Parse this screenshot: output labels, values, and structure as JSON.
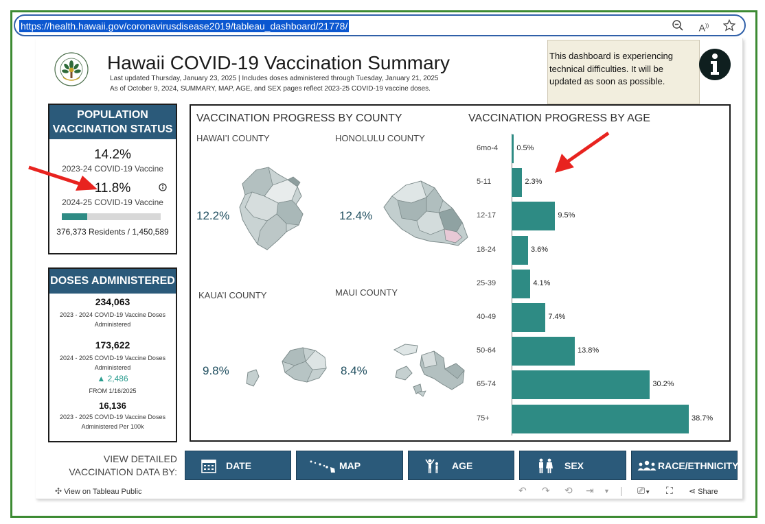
{
  "browser": {
    "url": "https://health.hawaii.gov/coronavirusdisease2019/tableau_dashboard/21778/",
    "icons": [
      "zoom-out-icon",
      "read-aloud-icon",
      "favorite-star-icon"
    ]
  },
  "header": {
    "title": "Hawaii COVID-19 Vaccination Summary",
    "updated": "Last updated Thursday, January 23, 2025 | Includes doses administered through Tuesday, January 21, 2025",
    "note": "As of October 9, 2024,  SUMMARY, MAP, AGE, and SEX pages reflect 2023-25 COVID-19 vaccine doses."
  },
  "notice": {
    "text": "This dashboard is experiencing technical difficulties. It will be updated as soon as possible."
  },
  "population": {
    "title_line1": "POPULATION",
    "title_line2": "VACCINATION STATUS",
    "pct_2023": "14.2%",
    "label_2023": "2023-24 COVID-19 Vaccine",
    "pct_2024": "11.8%",
    "label_2024": "2024-25 COVID-19 Vaccine",
    "progress_fraction": 0.26,
    "residents": "376,373 Residents / 1,450,589"
  },
  "doses": {
    "title": "DOSES ADMINISTERED",
    "d1_value": "234,063",
    "d1_label1": "2023 - 2024 COVID-19 Vaccine Doses",
    "d1_label2": "Administered",
    "d2_value": "173,622",
    "d2_label1": "2024 - 2025 COVID-19 Vaccine Doses",
    "d2_label2": "Administered",
    "change": "▲ 2,486",
    "change_from": "FROM 1/16/2025",
    "d3_value": "16,136",
    "d3_label1": "2023 - 2025 COVID-19 Vaccine Doses",
    "d3_label2": "Administered Per 100k"
  },
  "county_section": {
    "title": "VACCINATION PROGRESS BY COUNTY",
    "counties": [
      {
        "name": "HAWAI’I COUNTY",
        "pct": "12.2%"
      },
      {
        "name": "HONOLULU COUNTY",
        "pct": "12.4%"
      },
      {
        "name": "KAUA’I COUNTY",
        "pct": "9.8%"
      },
      {
        "name": "MAUI COUNTY",
        "pct": "8.4%"
      }
    ]
  },
  "chart_data": {
    "type": "bar",
    "orientation": "horizontal",
    "title": "VACCINATION PROGRESS BY AGE",
    "categories": [
      "6mo-4",
      "5-11",
      "12-17",
      "18-24",
      "25-39",
      "40-49",
      "50-64",
      "65-74",
      "75+"
    ],
    "values": [
      0.5,
      2.3,
      9.5,
      3.6,
      4.1,
      7.4,
      13.8,
      30.2,
      38.7
    ],
    "value_labels": [
      "0.5%",
      "2.3%",
      "9.5%",
      "3.6%",
      "4.1%",
      "7.4%",
      "13.8%",
      "30.2%",
      "38.7%"
    ],
    "color": "#2e8b84"
  },
  "nav": {
    "view_label_1": "VIEW DETAILED",
    "view_label_2": "VACCINATION DATA BY:",
    "buttons": [
      {
        "label": "DATE",
        "icon": "calendar-icon"
      },
      {
        "label": "MAP",
        "icon": "islands-icon"
      },
      {
        "label": "AGE",
        "icon": "people-age-icon"
      },
      {
        "label": "SEX",
        "icon": "male-female-icon"
      },
      {
        "label": "RACE/ETHNICITY",
        "icon": "group-icon"
      }
    ]
  },
  "toolbar": {
    "tableau_link": "View on Tableau Public",
    "share": "Share"
  },
  "colors": {
    "header_blue": "#2b5a7a",
    "bar_teal": "#2e8b84",
    "annotation_red": "#e8231f",
    "notice_bg": "#f2eede",
    "frame_green": "#3c8a32"
  }
}
